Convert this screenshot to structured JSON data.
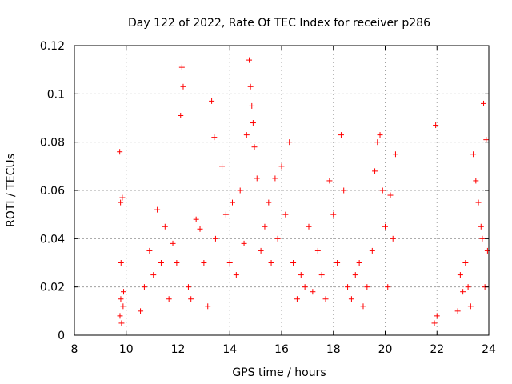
{
  "chart_data": {
    "type": "scatter",
    "title": "Day 122 of 2022, Rate Of TEC Index for receiver p286",
    "xlabel": "GPS time / hours",
    "ylabel": "ROTI / TECUs",
    "xlim": [
      8,
      24
    ],
    "ylim": [
      0,
      0.12
    ],
    "xticks": [
      8,
      10,
      12,
      14,
      16,
      18,
      20,
      22,
      24
    ],
    "xtick_labels": [
      "8",
      "10",
      "12",
      "14",
      "16",
      "18",
      "20",
      "22",
      "24"
    ],
    "yticks": [
      0,
      0.02,
      0.04,
      0.06,
      0.08,
      0.1,
      0.12
    ],
    "ytick_labels": [
      "0",
      "0.02",
      "0.04",
      "0.06",
      "0.08",
      "0.1",
      "0.12"
    ],
    "grid": true,
    "marker": "+",
    "color": "#ff0000",
    "x": [
      9.75,
      9.78,
      9.85,
      9.8,
      9.9,
      9.88,
      9.76,
      9.82,
      9.79,
      10.55,
      10.7,
      10.9,
      11.05,
      11.2,
      11.35,
      11.5,
      11.65,
      11.8,
      11.95,
      12.1,
      12.15,
      12.2,
      12.4,
      12.5,
      12.7,
      12.85,
      13.0,
      13.15,
      13.3,
      13.4,
      13.45,
      13.7,
      13.85,
      14.0,
      14.1,
      14.25,
      14.4,
      14.55,
      14.65,
      14.75,
      14.8,
      14.85,
      14.9,
      14.95,
      15.05,
      15.2,
      15.35,
      15.5,
      15.6,
      15.75,
      15.85,
      16.0,
      16.15,
      16.3,
      16.45,
      16.6,
      16.75,
      16.9,
      17.05,
      17.2,
      17.4,
      17.55,
      17.7,
      17.85,
      18.0,
      18.15,
      18.3,
      18.4,
      18.55,
      18.7,
      18.85,
      19.0,
      19.15,
      19.3,
      19.5,
      19.6,
      19.7,
      19.8,
      19.9,
      20.0,
      20.1,
      20.2,
      20.3,
      20.4,
      21.95,
      21.9,
      22.0,
      22.8,
      22.9,
      23.0,
      23.1,
      23.2,
      23.3,
      23.4,
      23.5,
      23.6,
      23.7,
      23.8,
      23.9,
      23.95,
      23.85,
      23.75
    ],
    "y": [
      0.076,
      0.055,
      0.057,
      0.03,
      0.018,
      0.012,
      0.008,
      0.005,
      0.015,
      0.01,
      0.02,
      0.035,
      0.025,
      0.052,
      0.03,
      0.045,
      0.015,
      0.038,
      0.03,
      0.091,
      0.111,
      0.103,
      0.02,
      0.015,
      0.048,
      0.044,
      0.03,
      0.012,
      0.097,
      0.082,
      0.04,
      0.07,
      0.05,
      0.03,
      0.055,
      0.025,
      0.06,
      0.038,
      0.083,
      0.114,
      0.103,
      0.095,
      0.088,
      0.078,
      0.065,
      0.035,
      0.045,
      0.055,
      0.03,
      0.065,
      0.04,
      0.07,
      0.05,
      0.08,
      0.03,
      0.015,
      0.025,
      0.02,
      0.045,
      0.018,
      0.035,
      0.025,
      0.015,
      0.064,
      0.05,
      0.03,
      0.083,
      0.06,
      0.02,
      0.015,
      0.025,
      0.03,
      0.012,
      0.02,
      0.035,
      0.068,
      0.08,
      0.083,
      0.06,
      0.045,
      0.02,
      0.058,
      0.04,
      0.075,
      0.087,
      0.005,
      0.008,
      0.01,
      0.025,
      0.018,
      0.03,
      0.02,
      0.012,
      0.075,
      0.064,
      0.055,
      0.045,
      0.096,
      0.081,
      0.035,
      0.02,
      0.04
    ]
  }
}
